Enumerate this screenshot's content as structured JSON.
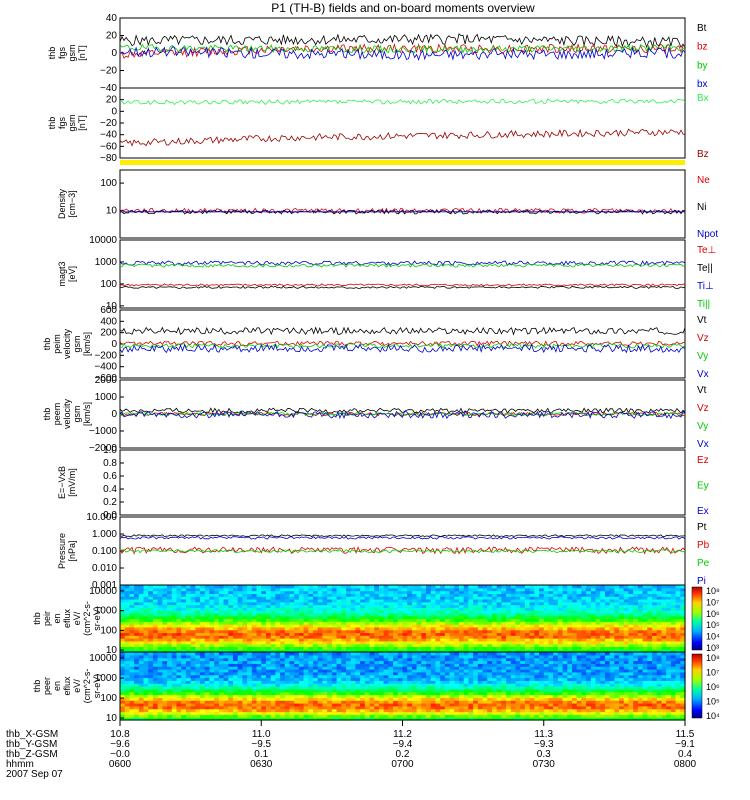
{
  "title": "P1 (TH-B) fields and on-board moments overview",
  "colors": {
    "black": "#000000",
    "red": "#dd0000",
    "green": "#00cc00",
    "blue": "#0000cc",
    "darkred": "#990000",
    "ltgreen": "#33ee55",
    "yellow": "#ffee00"
  },
  "chart_data": [
    {
      "type": "line",
      "id": "fgs",
      "ylabel_lines": [
        "thb",
        "fgs",
        "gsm",
        "[nT]"
      ],
      "ylim": [
        -40,
        40
      ],
      "yticks": [
        {
          "v": 40,
          "t": "40"
        },
        {
          "v": 20,
          "t": "20"
        },
        {
          "v": 0,
          "t": "0"
        },
        {
          "v": -20,
          "t": "−20"
        },
        {
          "v": -40,
          "t": "−40"
        }
      ],
      "series": [
        {
          "name": "Bt",
          "color": "black",
          "base": 14,
          "noise": 6,
          "shape": [
            [
              0,
              14
            ],
            [
              0.6,
              16
            ],
            [
              1,
              12
            ]
          ]
        },
        {
          "name": "bz",
          "color": "red",
          "base": 3,
          "noise": 5,
          "shape": [
            [
              0,
              -2
            ],
            [
              0.3,
              5
            ],
            [
              1,
              5
            ]
          ]
        },
        {
          "name": "by",
          "color": "green",
          "base": 4,
          "noise": 4,
          "shape": [
            [
              0,
              6
            ],
            [
              0.5,
              4
            ],
            [
              1,
              6
            ]
          ]
        },
        {
          "name": "bx",
          "color": "blue",
          "base": 1,
          "noise": 6,
          "shape": [
            [
              0,
              2
            ],
            [
              0.5,
              -2
            ],
            [
              1,
              0
            ]
          ]
        }
      ]
    },
    {
      "type": "line",
      "id": "fgs_ssm",
      "ylabel_lines": [
        "thb",
        "fgs",
        "gsm",
        "[nT]"
      ],
      "ylim": [
        -80,
        40
      ],
      "yticks": [
        {
          "v": 20,
          "t": "20"
        },
        {
          "v": 0,
          "t": "0"
        },
        {
          "v": -20,
          "t": "−20"
        },
        {
          "v": -40,
          "t": "−40"
        },
        {
          "v": -60,
          "t": "−60"
        },
        {
          "v": -80,
          "t": "−80"
        }
      ],
      "series": [
        {
          "name": "Bx",
          "color": "ltgreen",
          "base": 15,
          "noise": 4,
          "shape": [
            [
              0,
              15
            ],
            [
              1,
              18
            ]
          ]
        },
        {
          "name": "Bz",
          "color": "darkred",
          "base": -45,
          "noise": 6,
          "shape": [
            [
              0,
              -55
            ],
            [
              0.3,
              -45
            ],
            [
              1,
              -35
            ]
          ]
        }
      ]
    },
    {
      "type": "band",
      "id": "mode_bar",
      "color": "yellow"
    },
    {
      "type": "line",
      "id": "density",
      "ylog": true,
      "ylabel_lines": [
        "Density",
        "[cm−3]"
      ],
      "ylim": [
        1,
        300
      ],
      "yticks": [
        {
          "v": 100,
          "t": "100"
        },
        {
          "v": 10,
          "t": "10"
        }
      ],
      "series": [
        {
          "name": "Ne",
          "color": "red",
          "base": 10,
          "noise": 2
        },
        {
          "name": "Ni",
          "color": "black",
          "base": 9,
          "noise": 1.5
        },
        {
          "name": "Npot",
          "color": "blue",
          "base": 9,
          "noise": 0
        }
      ]
    },
    {
      "type": "line",
      "id": "temp",
      "ylog": true,
      "ylabel_lines": [
        "magt3",
        "[eV]"
      ],
      "ylim": [
        8,
        10000
      ],
      "yticks": [
        {
          "v": 10000,
          "t": "10000"
        },
        {
          "v": 1000,
          "t": "1000"
        },
        {
          "v": 100,
          "t": "100"
        },
        {
          "v": 10,
          "t": "10"
        }
      ],
      "series": [
        {
          "name": "Te⊥",
          "color": "red",
          "base": 90,
          "noise": 10
        },
        {
          "name": "Te||",
          "color": "black",
          "base": 70,
          "noise": 8
        },
        {
          "name": "Ti⊥",
          "color": "blue",
          "base": 900,
          "noise": 200
        },
        {
          "name": "Ti||",
          "color": "green",
          "base": 700,
          "noise": 120
        }
      ]
    },
    {
      "type": "line",
      "id": "peim_v",
      "ylabel_lines": [
        "thb",
        "peim",
        "velocity",
        "gsm",
        "[km/s]"
      ],
      "ylim": [
        -600,
        600
      ],
      "yticks": [
        {
          "v": 600,
          "t": "600"
        },
        {
          "v": 400,
          "t": "400"
        },
        {
          "v": 200,
          "t": "200"
        },
        {
          "v": 0,
          "t": "0"
        },
        {
          "v": -200,
          "t": "−200"
        },
        {
          "v": -400,
          "t": "−400"
        },
        {
          "v": -600,
          "t": "−600"
        }
      ],
      "series": [
        {
          "name": "Vt",
          "color": "black",
          "base": 230,
          "noise": 60
        },
        {
          "name": "Vz",
          "color": "red",
          "base": 10,
          "noise": 40
        },
        {
          "name": "Vy",
          "color": "green",
          "base": -30,
          "noise": 40
        },
        {
          "name": "Vx",
          "color": "blue",
          "base": -80,
          "noise": 70
        }
      ]
    },
    {
      "type": "line",
      "id": "peem_v",
      "ylabel_lines": [
        "thb",
        "peem",
        "velocity",
        "gsm",
        "[km/s]"
      ],
      "ylim": [
        -2000,
        2000
      ],
      "yticks": [
        {
          "v": 2000,
          "t": "2000"
        },
        {
          "v": 1000,
          "t": "1000"
        },
        {
          "v": 0,
          "t": "0"
        },
        {
          "v": -1000,
          "t": "−1000"
        },
        {
          "v": -2000,
          "t": "−2000"
        }
      ],
      "series": [
        {
          "name": "Vt",
          "color": "black",
          "base": 200,
          "noise": 150
        },
        {
          "name": "Vz",
          "color": "red",
          "base": 0,
          "noise": 100
        },
        {
          "name": "Vy",
          "color": "green",
          "base": 0,
          "noise": 100
        },
        {
          "name": "Vx",
          "color": "blue",
          "base": -50,
          "noise": 200
        }
      ]
    },
    {
      "type": "line",
      "id": "efield",
      "ylabel_lines": [
        "E=−VxB",
        "[mV/m]"
      ],
      "ylim": [
        0,
        1.0
      ],
      "yticks": [
        {
          "v": 1.0,
          "t": "1.0"
        },
        {
          "v": 0.8,
          "t": "0.8"
        },
        {
          "v": 0.6,
          "t": "0.6"
        },
        {
          "v": 0.4,
          "t": "0.4"
        },
        {
          "v": 0.2,
          "t": "0.2"
        },
        {
          "v": 0.0,
          "t": "0.0"
        }
      ],
      "series": [
        {
          "name": "Ez",
          "color": "red"
        },
        {
          "name": "Ey",
          "color": "green"
        },
        {
          "name": "Ex",
          "color": "blue"
        }
      ]
    },
    {
      "type": "line",
      "id": "pressure",
      "ylog": true,
      "ylabel_lines": [
        "Pressure",
        "[nPa]"
      ],
      "ylim": [
        0.001,
        10
      ],
      "yticks": [
        {
          "v": 10,
          "t": "10.000"
        },
        {
          "v": 1,
          "t": "1.000"
        },
        {
          "v": 0.1,
          "t": "0.100"
        },
        {
          "v": 0.01,
          "t": "0.010"
        },
        {
          "v": 0.001,
          "t": "0.001"
        }
      ],
      "series": [
        {
          "name": "Pt",
          "color": "black",
          "base": 0.8,
          "noise": 0.1
        },
        {
          "name": "Pb",
          "color": "red",
          "base": 0.12,
          "noise": 0.05
        },
        {
          "name": "Pe",
          "color": "green",
          "base": 0.1,
          "noise": 0.02
        },
        {
          "name": "Pi",
          "color": "blue",
          "base": 0.6,
          "noise": 0.1
        }
      ]
    },
    {
      "type": "heatmap",
      "id": "peir_eflux",
      "ylog": true,
      "ylabel_lines": [
        "thb",
        "peir",
        "en",
        "eflux",
        "eV/",
        "(cm^2-s-",
        "sr-eV)"
      ],
      "ylim": [
        8,
        20000
      ],
      "yticks": [
        {
          "v": 10000,
          "t": "10000"
        },
        {
          "v": 1000,
          "t": "1000"
        },
        {
          "v": 100,
          "t": "100"
        },
        {
          "v": 10,
          "t": "10"
        }
      ],
      "colorbar_ticks": [
        "10⁸",
        "10⁷",
        "10⁶",
        "10⁵",
        "10⁴",
        "10³"
      ]
    },
    {
      "type": "heatmap",
      "id": "peer_eflux",
      "ylog": true,
      "ylabel_lines": [
        "thb",
        "peer",
        "en",
        "eflux",
        "eV/",
        "(cm^2-s-",
        "sr-eV)"
      ],
      "ylim": [
        8,
        20000
      ],
      "yticks": [
        {
          "v": 10000,
          "t": "10000"
        },
        {
          "v": 1000,
          "t": "1000"
        },
        {
          "v": 100,
          "t": "100"
        },
        {
          "v": 10,
          "t": "10"
        }
      ],
      "colorbar_ticks": [
        "10⁸",
        "10⁷",
        "10⁶",
        "10⁵",
        "10⁴"
      ]
    }
  ],
  "xaxis": {
    "row_labels": [
      "thb_X-GSM",
      "thb_Y-GSM",
      "thb_Z-GSM",
      "hhmm",
      "2007 Sep 07"
    ],
    "columns": [
      {
        "vals": [
          "10.8",
          "−9.6",
          "−0.0",
          "0600"
        ]
      },
      {
        "vals": [
          "11.0",
          "−9.5",
          "0.1",
          "0630"
        ]
      },
      {
        "vals": [
          "11.2",
          "−9.4",
          "0.2",
          "0700"
        ]
      },
      {
        "vals": [
          "11.3",
          "−9.3",
          "0.3",
          "0730"
        ]
      },
      {
        "vals": [
          "11.5",
          "−9.1",
          "0.4",
          "0800"
        ]
      }
    ]
  }
}
